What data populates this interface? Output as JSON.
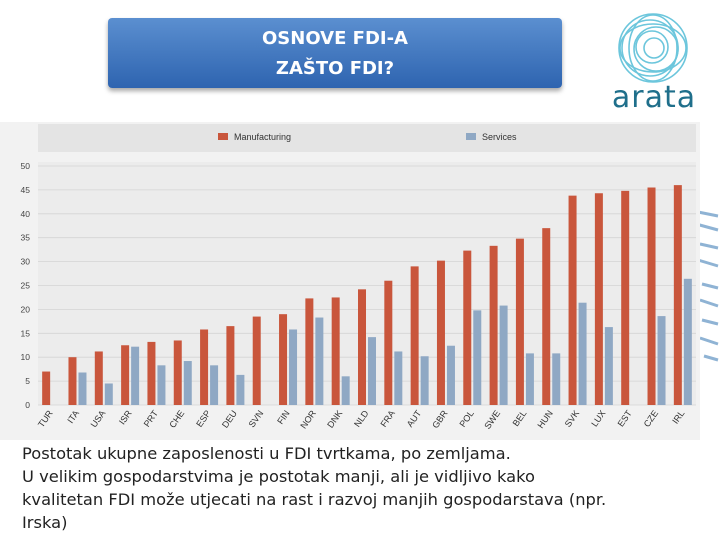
{
  "header": {
    "title_line1": "OSNOVE FDI-A",
    "title_line2": "ZAŠTO FDI?"
  },
  "logo": {
    "text": "arata",
    "icon": "swirl-logo-icon",
    "color": "#1f6f8b"
  },
  "chart_data": {
    "type": "bar",
    "title": "",
    "xlabel": "",
    "ylabel": "",
    "ylim": [
      0,
      50
    ],
    "yticks": [
      0,
      5,
      10,
      15,
      20,
      25,
      30,
      35,
      40,
      45,
      50
    ],
    "grid": true,
    "legend_position": "top",
    "categories": [
      "TUR",
      "ITA",
      "USA",
      "ISR",
      "PRT",
      "CHE",
      "ESP",
      "DEU",
      "SVN",
      "FIN",
      "NOR",
      "DNK",
      "NLD",
      "FRA",
      "AUT",
      "GBR",
      "POL",
      "SWE",
      "BEL",
      "HUN",
      "SVK",
      "LUX",
      "EST",
      "CZE",
      "IRL"
    ],
    "series": [
      {
        "name": "Manufacturing",
        "color": "#c9563c",
        "values": [
          7,
          10,
          11.2,
          12.5,
          13.2,
          13.5,
          15.8,
          16.5,
          18.5,
          19,
          22.3,
          22.5,
          24.2,
          26,
          29,
          30.2,
          32.3,
          33.3,
          34.8,
          37,
          43.8,
          44.3,
          44.8,
          45.5,
          46
        ]
      },
      {
        "name": "Services",
        "color": "#8fa8c4",
        "values": [
          null,
          6.8,
          4.5,
          12.2,
          8.3,
          9.2,
          8.3,
          6.3,
          null,
          15.8,
          18.3,
          6,
          14.2,
          11.2,
          10.2,
          12.4,
          19.8,
          20.8,
          10.8,
          10.8,
          21.4,
          16.3,
          null,
          18.6,
          26.4
        ]
      }
    ]
  },
  "caption": {
    "line1": "Postotak ukupne zaposlenosti u FDI tvrtkama, po zemljama.",
    "line2": "U velikim gospodarstvima je postotak manji, ali je vidljivo kako",
    "line3": "kvalitetan FDI može utjecati na rast i razvoj manjih gospodarstava (npr.",
    "line4": "Irska)"
  }
}
